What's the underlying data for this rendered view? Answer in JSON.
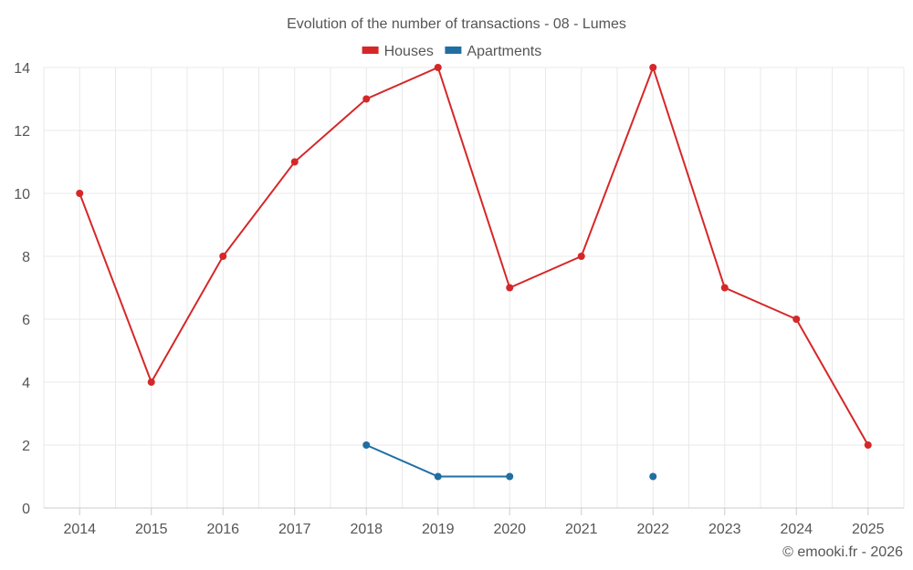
{
  "chart_data": {
    "type": "line",
    "title": "Evolution of the number of transactions - 08 - Lumes",
    "x": [
      "2014",
      "2015",
      "2016",
      "2017",
      "2018",
      "2019",
      "2020",
      "2021",
      "2022",
      "2023",
      "2024",
      "2025"
    ],
    "ylim": [
      0,
      14
    ],
    "yticks": [
      0,
      2,
      4,
      6,
      8,
      10,
      12,
      14
    ],
    "grid": true,
    "legend_position": "top-center",
    "series": [
      {
        "name": "Houses",
        "color": "#d62728",
        "values": [
          10,
          4,
          8,
          11,
          13,
          14,
          7,
          8,
          14,
          7,
          6,
          2
        ]
      },
      {
        "name": "Apartments",
        "color": "#1f6fa3",
        "values": [
          null,
          null,
          null,
          null,
          2,
          1,
          1,
          null,
          1,
          null,
          null,
          null
        ]
      }
    ],
    "xlabel": "",
    "ylabel": ""
  },
  "credit": "© emooki.fr - 2026"
}
